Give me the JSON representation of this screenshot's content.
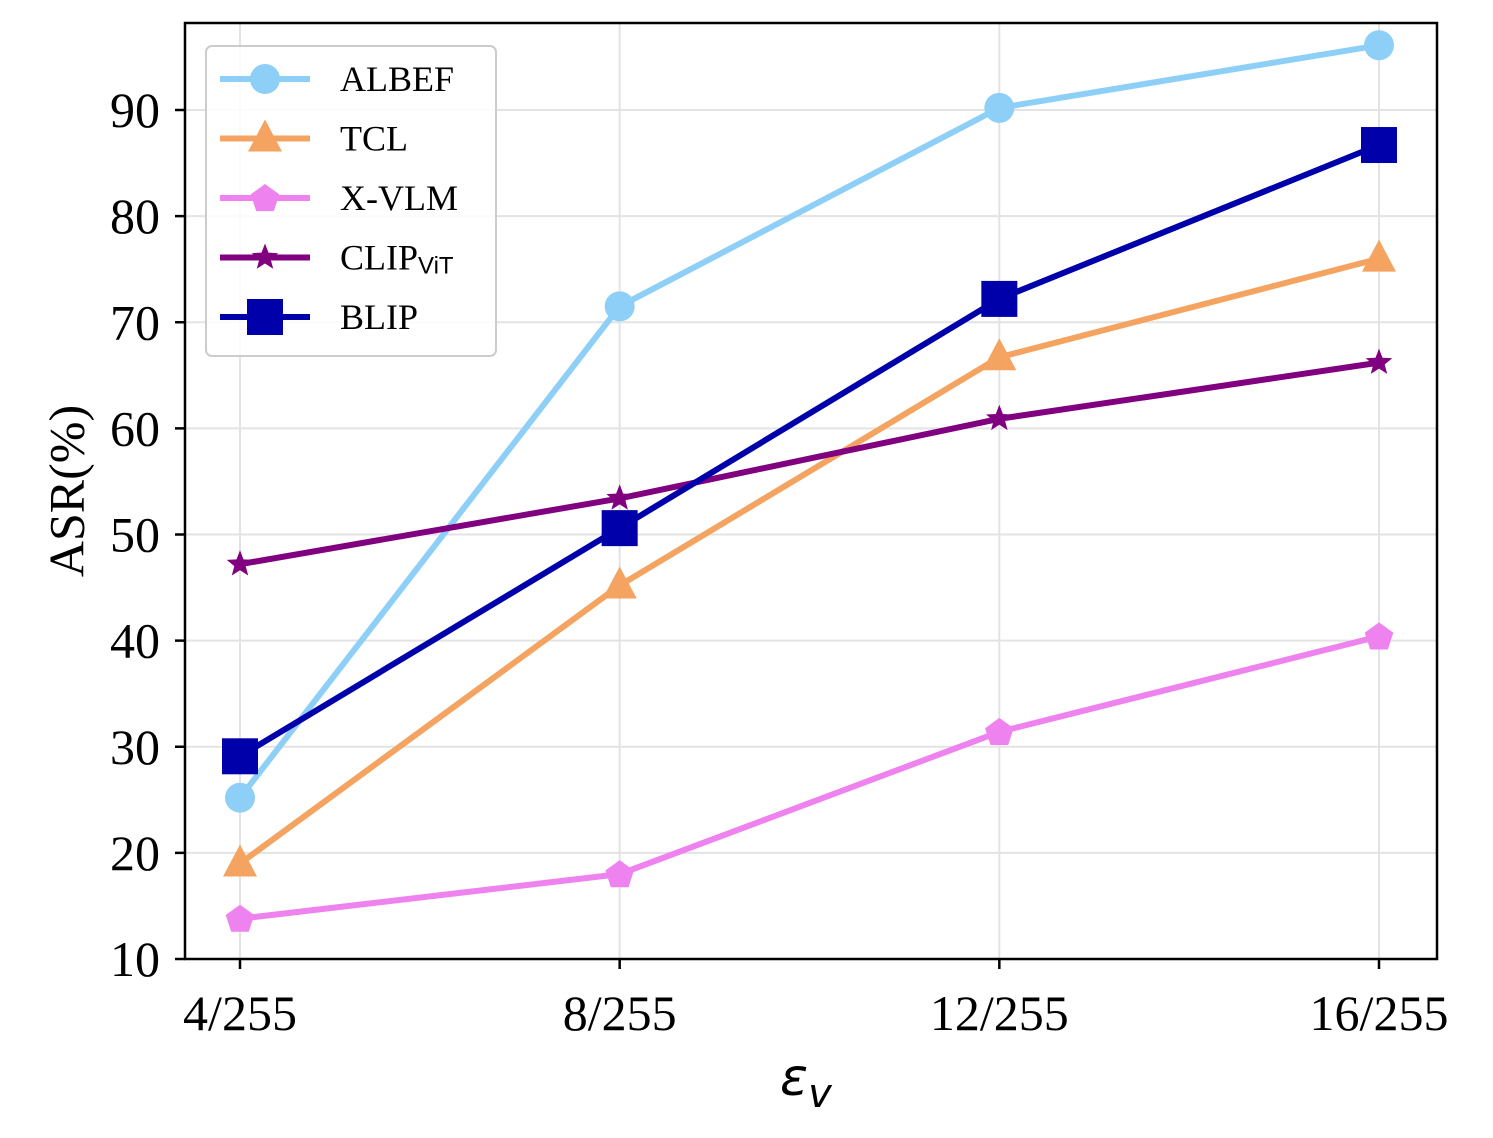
{
  "chart_data": {
    "type": "line",
    "title": "",
    "xlabel": {
      "symbol": "ε",
      "subscript": "v"
    },
    "ylabel": "ASR(%)",
    "categories": [
      "4/255",
      "8/255",
      "12/255",
      "16/255"
    ],
    "ylim": [
      10,
      98
    ],
    "yticks": [
      "10",
      "20",
      "30",
      "40",
      "50",
      "60",
      "70",
      "80",
      "90"
    ],
    "grid": true,
    "legend_position": "top-left",
    "series": [
      {
        "name": "ALBEF",
        "name_sub": "",
        "color": "#8ecff8",
        "marker": "circle",
        "values": [
          25.2,
          71.5,
          90.2,
          96.1
        ]
      },
      {
        "name": "TCL",
        "name_sub": "",
        "color": "#f4a460",
        "marker": "triangle",
        "values": [
          19.0,
          45.2,
          66.7,
          76.0
        ]
      },
      {
        "name": "X-VLM",
        "name_sub": "",
        "color": "#ee82ee",
        "marker": "pentagon",
        "values": [
          13.8,
          18.0,
          31.4,
          40.4
        ]
      },
      {
        "name": "CLIP",
        "name_sub": "ViT",
        "color": "#800080",
        "marker": "star",
        "values": [
          47.2,
          53.4,
          60.9,
          66.2
        ]
      },
      {
        "name": "BLIP",
        "name_sub": "",
        "color": "#0000aa",
        "marker": "square",
        "values": [
          29.1,
          50.6,
          72.2,
          86.7
        ]
      }
    ]
  }
}
